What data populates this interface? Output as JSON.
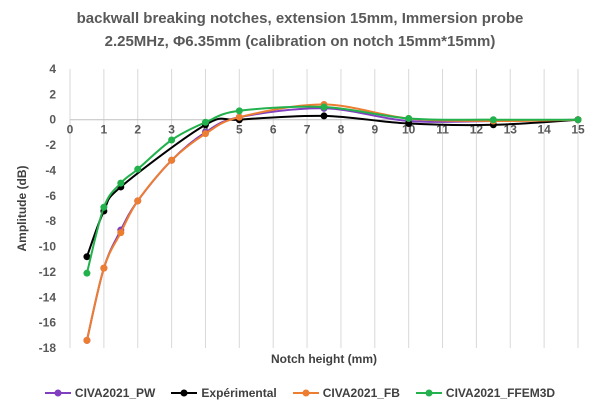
{
  "chart_data": {
    "type": "line",
    "title_lines": [
      "backwall breaking notches, extension 15mm, Immersion probe",
      "2.25MHz, Φ6.35mm (calibration on notch 15mm*15mm)"
    ],
    "xlabel": "Notch height (mm)",
    "ylabel": "Amplitude (dB)",
    "xlim": [
      0,
      15
    ],
    "ylim": [
      -18,
      4
    ],
    "x_ticks": [
      "0",
      "1",
      "2",
      "3",
      "4",
      "5",
      "6",
      "7",
      "8",
      "9",
      "10",
      "11",
      "12",
      "13",
      "14",
      "15"
    ],
    "y_ticks": [
      "4",
      "2",
      "0",
      "-2",
      "-4",
      "-6",
      "-8",
      "-10",
      "-12",
      "-14",
      "-16",
      "-18"
    ],
    "grid": "vertical",
    "legend_position": "bottom",
    "series": [
      {
        "name": "CIVA2021_PW",
        "color": "#7F3FBF",
        "x": [
          0.5,
          1,
          1.5,
          2,
          3,
          4,
          5,
          7.5,
          10,
          12.5,
          15
        ],
        "y": [
          -17.4,
          -11.7,
          -8.7,
          -6.4,
          -3.2,
          -1.0,
          0.2,
          0.9,
          -0.1,
          -0.1,
          0
        ]
      },
      {
        "name": "Expérimental",
        "color": "#000000",
        "x": [
          0.5,
          1,
          1.5,
          4,
          5,
          7.5,
          10,
          12.5,
          15
        ],
        "y": [
          -10.8,
          -7.2,
          -5.3,
          -0.4,
          0.0,
          0.3,
          -0.3,
          -0.4,
          0
        ]
      },
      {
        "name": "CIVA2021_FB",
        "color": "#ED7D31",
        "x": [
          0.5,
          1,
          1.5,
          2,
          3,
          4,
          5,
          7.5,
          10,
          12.5,
          15
        ],
        "y": [
          -17.4,
          -11.7,
          -8.9,
          -6.4,
          -3.2,
          -1.1,
          0.2,
          1.2,
          0.1,
          -0.1,
          0
        ]
      },
      {
        "name": "CIVA2021_FFEM3D",
        "color": "#22B14C",
        "x": [
          0.5,
          1,
          1.5,
          2,
          3,
          4,
          5,
          7.5,
          10,
          12.5,
          15
        ],
        "y": [
          -12.1,
          -6.9,
          -5.0,
          -3.9,
          -1.6,
          -0.2,
          0.7,
          1.0,
          0.1,
          0.0,
          0
        ]
      }
    ]
  }
}
